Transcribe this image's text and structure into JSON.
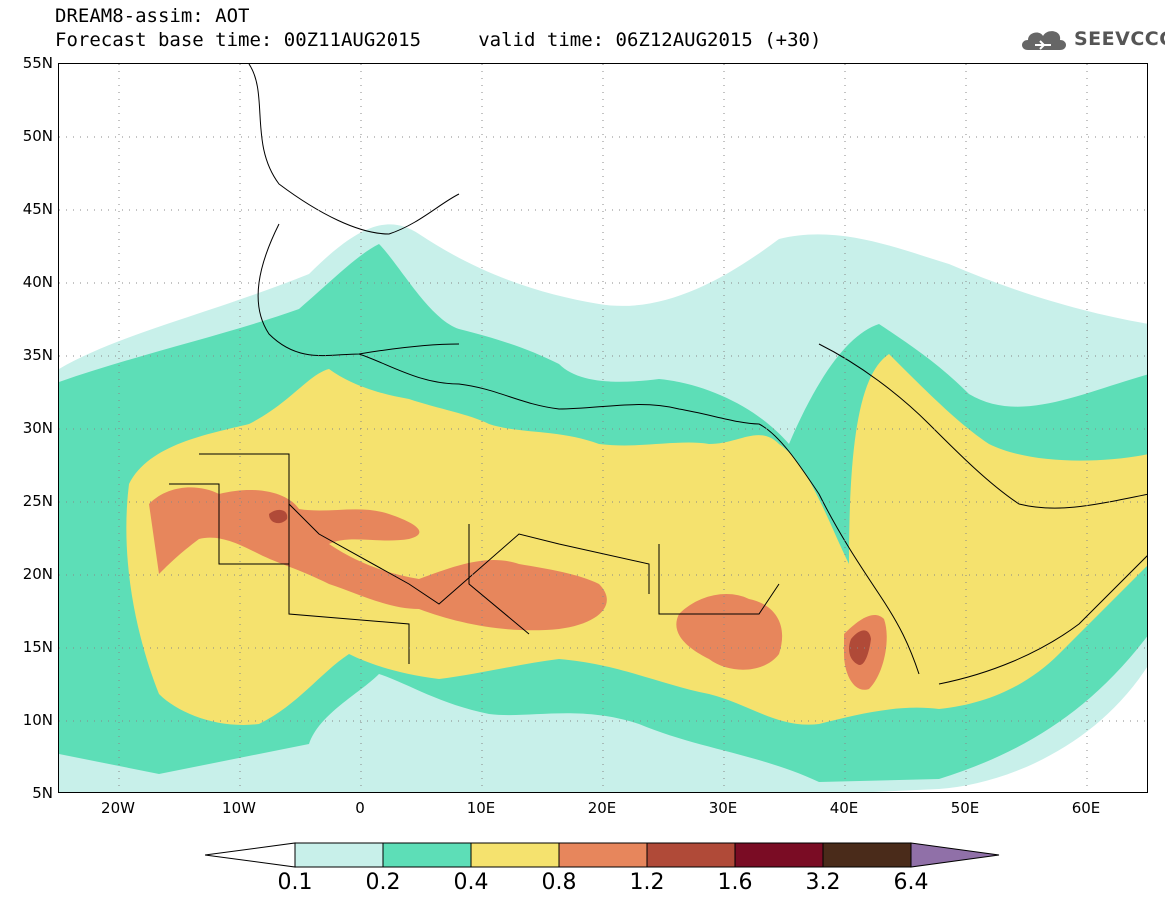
{
  "title": {
    "line1": "DREAM8-assim: AOT",
    "line2": "Forecast base time: 00Z11AUG2015     valid time: 06Z12AUG2015 (+30)"
  },
  "logo": {
    "text": "SEEVCCC",
    "icon": "cloud-icon"
  },
  "map": {
    "lat_labels": [
      "55N",
      "50N",
      "45N",
      "40N",
      "35N",
      "30N",
      "25N",
      "20N",
      "15N",
      "10N",
      "5N"
    ],
    "lon_labels": [
      "20W",
      "10W",
      "0",
      "10E",
      "20E",
      "30E",
      "40E",
      "50E",
      "60E"
    ],
    "lat_range": [
      5,
      55
    ],
    "lon_range": [
      -25,
      65
    ],
    "grid": "dotted"
  },
  "legend": {
    "labels": [
      "0.1",
      "0.2",
      "0.4",
      "0.8",
      "1.2",
      "1.6",
      "3.2",
      "6.4"
    ],
    "colors": [
      "#ffffff",
      "#c8f0ea",
      "#5ddeb7",
      "#f5e26e",
      "#e7865c",
      "#b04a38",
      "#7a0c24",
      "#4a2b1a",
      "#9070a8"
    ]
  }
}
